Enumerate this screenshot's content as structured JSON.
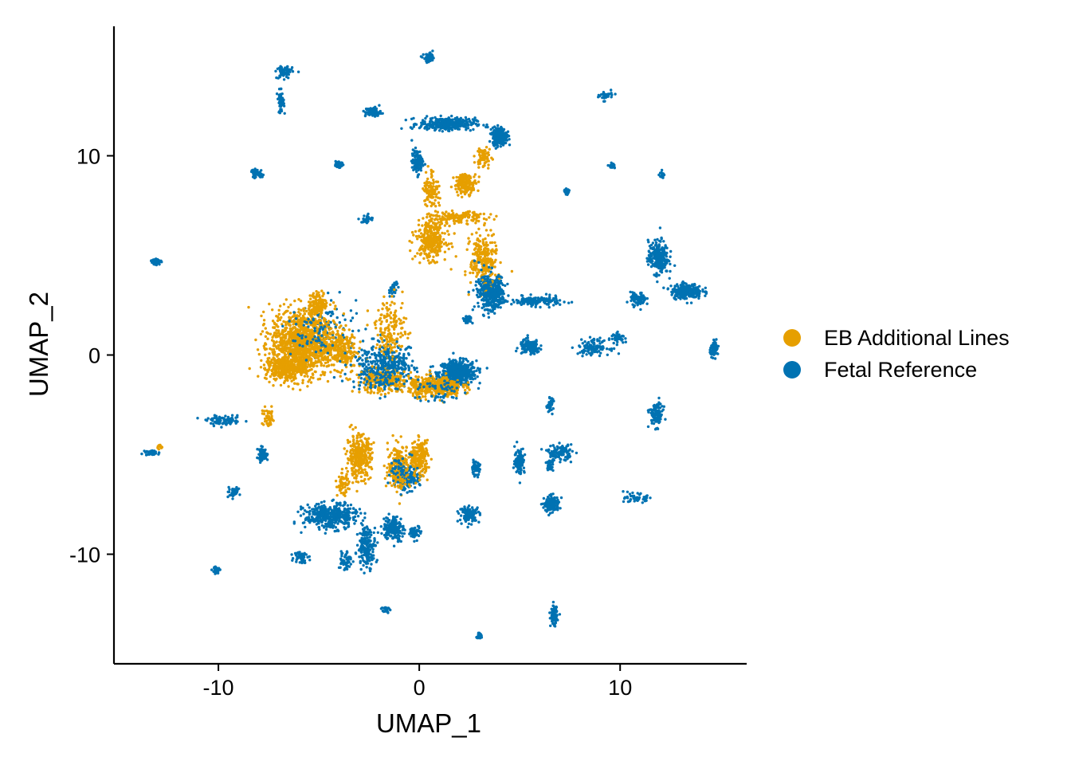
{
  "chart_data": {
    "type": "scatter",
    "title": "",
    "xlabel": "UMAP_1",
    "ylabel": "UMAP_2",
    "xlim": [
      -15.2,
      16.3
    ],
    "ylim": [
      -15.5,
      16.5
    ],
    "xticks": [
      -10,
      0,
      10
    ],
    "xtick_labels": [
      "-10",
      "0",
      "10"
    ],
    "yticks": [
      -10,
      0,
      10
    ],
    "ytick_labels": [
      "-10",
      "0",
      "10"
    ],
    "grid": false,
    "legend_position": "right",
    "series": [
      {
        "name": "EB Additional Lines",
        "color": "#E69F00",
        "clusters": [
          {
            "center": [
              -5.8,
              0.6
            ],
            "spread": [
              1.45,
              1.55
            ],
            "count": 1200
          },
          {
            "center": [
              -6.8,
              -0.7
            ],
            "spread": [
              0.8,
              0.5
            ],
            "count": 260
          },
          {
            "center": [
              -3.9,
              0.3
            ],
            "spread": [
              0.7,
              0.9
            ],
            "count": 220
          },
          {
            "center": [
              -5.0,
              2.6
            ],
            "spread": [
              0.4,
              0.5
            ],
            "count": 120
          },
          {
            "center": [
              0.8,
              -1.6
            ],
            "spread": [
              1.2,
              0.45
            ],
            "count": 420
          },
          {
            "center": [
              0.6,
              5.8
            ],
            "spread": [
              0.7,
              0.9
            ],
            "count": 320
          },
          {
            "center": [
              3.2,
              4.8
            ],
            "spread": [
              0.6,
              1.2
            ],
            "count": 240
          },
          {
            "center": [
              2.0,
              6.9
            ],
            "spread": [
              1.3,
              0.25
            ],
            "count": 130
          },
          {
            "center": [
              2.3,
              8.6
            ],
            "spread": [
              0.5,
              0.45
            ],
            "count": 160
          },
          {
            "center": [
              0.6,
              8.3
            ],
            "spread": [
              0.35,
              0.9
            ],
            "count": 110
          },
          {
            "center": [
              3.2,
              9.9
            ],
            "spread": [
              0.35,
              0.5
            ],
            "count": 60
          },
          {
            "center": [
              -3.0,
              -5.1
            ],
            "spread": [
              0.55,
              0.95
            ],
            "count": 320
          },
          {
            "center": [
              -1.0,
              -5.6
            ],
            "spread": [
              0.5,
              1.0
            ],
            "count": 220
          },
          {
            "center": [
              0.0,
              -5.2
            ],
            "spread": [
              0.4,
              0.8
            ],
            "count": 200
          },
          {
            "center": [
              -3.8,
              -6.5
            ],
            "spread": [
              0.25,
              0.5
            ],
            "count": 60
          },
          {
            "center": [
              -1.8,
              -1.3
            ],
            "spread": [
              1.3,
              0.55
            ],
            "count": 260
          },
          {
            "center": [
              -1.4,
              1.3
            ],
            "spread": [
              0.7,
              1.4
            ],
            "count": 160
          },
          {
            "center": [
              -7.5,
              -3.2
            ],
            "spread": [
              0.3,
              0.45
            ],
            "count": 50
          },
          {
            "center": [
              -12.9,
              -4.6
            ],
            "spread": [
              0.15,
              0.1
            ],
            "count": 15
          }
        ]
      },
      {
        "name": "Fetal Reference",
        "color": "#0072B2",
        "clusters": [
          {
            "center": [
              -1.5,
              -0.5
            ],
            "spread": [
              1.2,
              1.1
            ],
            "count": 180
          },
          {
            "center": [
              -4.5,
              1.5
            ],
            "spread": [
              1.2,
              1.3
            ],
            "count": 70
          },
          {
            "center": [
              1.9,
              -0.9
            ],
            "spread": [
              0.85,
              0.55
            ],
            "count": 520
          },
          {
            "center": [
              3.6,
              3.1
            ],
            "spread": [
              0.55,
              0.7
            ],
            "count": 400
          },
          {
            "center": [
              5.8,
              2.7
            ],
            "spread": [
              1.1,
              0.22
            ],
            "count": 160
          },
          {
            "center": [
              1.4,
              11.6
            ],
            "spread": [
              1.25,
              0.28
            ],
            "count": 340
          },
          {
            "center": [
              4.0,
              11.0
            ],
            "spread": [
              0.32,
              0.38
            ],
            "count": 320
          },
          {
            "center": [
              -2.3,
              12.2
            ],
            "spread": [
              0.35,
              0.22
            ],
            "count": 90
          },
          {
            "center": [
              -0.1,
              9.7
            ],
            "spread": [
              0.25,
              0.55
            ],
            "count": 100
          },
          {
            "center": [
              11.9,
              4.9
            ],
            "spread": [
              0.45,
              0.75
            ],
            "count": 260
          },
          {
            "center": [
              13.3,
              3.2
            ],
            "spread": [
              0.7,
              0.35
            ],
            "count": 230
          },
          {
            "center": [
              10.9,
              2.8
            ],
            "spread": [
              0.35,
              0.3
            ],
            "count": 90
          },
          {
            "center": [
              14.7,
              0.3
            ],
            "spread": [
              0.2,
              0.32
            ],
            "count": 70
          },
          {
            "center": [
              5.5,
              0.4
            ],
            "spread": [
              0.45,
              0.32
            ],
            "count": 160
          },
          {
            "center": [
              8.7,
              0.4
            ],
            "spread": [
              0.7,
              0.35
            ],
            "count": 120
          },
          {
            "center": [
              11.8,
              -3.0
            ],
            "spread": [
              0.3,
              0.55
            ],
            "count": 110
          },
          {
            "center": [
              -4.4,
              -8.1
            ],
            "spread": [
              1.2,
              0.55
            ],
            "count": 420
          },
          {
            "center": [
              -2.6,
              -9.6
            ],
            "spread": [
              0.4,
              0.9
            ],
            "count": 180
          },
          {
            "center": [
              -1.3,
              -8.7
            ],
            "spread": [
              0.45,
              0.55
            ],
            "count": 180
          },
          {
            "center": [
              -0.6,
              -6.2
            ],
            "spread": [
              0.55,
              0.5
            ],
            "count": 160
          },
          {
            "center": [
              2.8,
              -5.7
            ],
            "spread": [
              0.2,
              0.3
            ],
            "count": 60
          },
          {
            "center": [
              2.5,
              -8.0
            ],
            "spread": [
              0.45,
              0.35
            ],
            "count": 110
          },
          {
            "center": [
              5.0,
              -5.3
            ],
            "spread": [
              0.22,
              0.6
            ],
            "count": 110
          },
          {
            "center": [
              6.6,
              -7.5
            ],
            "spread": [
              0.35,
              0.35
            ],
            "count": 150
          },
          {
            "center": [
              7.0,
              -4.9
            ],
            "spread": [
              0.55,
              0.35
            ],
            "count": 110
          },
          {
            "center": [
              6.7,
              -13.1
            ],
            "spread": [
              0.15,
              0.45
            ],
            "count": 90
          },
          {
            "center": [
              0.5,
              14.9
            ],
            "spread": [
              0.25,
              0.2
            ],
            "count": 60
          },
          {
            "center": [
              -6.7,
              14.2
            ],
            "spread": [
              0.35,
              0.3
            ],
            "count": 70
          },
          {
            "center": [
              -6.9,
              12.7
            ],
            "spread": [
              0.15,
              0.5
            ],
            "count": 50
          },
          {
            "center": [
              -8.1,
              9.1
            ],
            "spread": [
              0.28,
              0.2
            ],
            "count": 50
          },
          {
            "center": [
              -13.1,
              4.7
            ],
            "spread": [
              0.22,
              0.15
            ],
            "count": 35
          },
          {
            "center": [
              -2.6,
              6.8
            ],
            "spread": [
              0.25,
              0.2
            ],
            "count": 35
          },
          {
            "center": [
              -4.0,
              9.6
            ],
            "spread": [
              0.18,
              0.18
            ],
            "count": 35
          },
          {
            "center": [
              -9.7,
              -3.3
            ],
            "spread": [
              0.8,
              0.2
            ],
            "count": 90
          },
          {
            "center": [
              -7.8,
              -5.0
            ],
            "spread": [
              0.25,
              0.3
            ],
            "count": 60
          },
          {
            "center": [
              -13.3,
              -4.9
            ],
            "spread": [
              0.3,
              0.12
            ],
            "count": 45
          },
          {
            "center": [
              -9.3,
              -6.9
            ],
            "spread": [
              0.3,
              0.2
            ],
            "count": 40
          },
          {
            "center": [
              -10.1,
              -10.8
            ],
            "spread": [
              0.18,
              0.18
            ],
            "count": 30
          },
          {
            "center": [
              -5.9,
              -10.1
            ],
            "spread": [
              0.3,
              0.3
            ],
            "count": 50
          },
          {
            "center": [
              -3.7,
              -10.3
            ],
            "spread": [
              0.3,
              0.5
            ],
            "count": 60
          },
          {
            "center": [
              -1.7,
              -12.8
            ],
            "spread": [
              0.18,
              0.2
            ],
            "count": 30
          },
          {
            "center": [
              3.0,
              -14.1
            ],
            "spread": [
              0.15,
              0.12
            ],
            "count": 35
          },
          {
            "center": [
              -0.2,
              -8.9
            ],
            "spread": [
              0.25,
              0.3
            ],
            "count": 60
          },
          {
            "center": [
              10.8,
              -7.2
            ],
            "spread": [
              0.5,
              0.2
            ],
            "count": 55
          },
          {
            "center": [
              6.5,
              -2.5
            ],
            "spread": [
              0.15,
              0.3
            ],
            "count": 40
          },
          {
            "center": [
              6.5,
              -5.5
            ],
            "spread": [
              0.15,
              0.3
            ],
            "count": 30
          },
          {
            "center": [
              9.3,
              13.0
            ],
            "spread": [
              0.3,
              0.2
            ],
            "count": 40
          },
          {
            "center": [
              9.6,
              9.5
            ],
            "spread": [
              0.15,
              0.15
            ],
            "count": 25
          },
          {
            "center": [
              7.3,
              8.2
            ],
            "spread": [
              0.15,
              0.12
            ],
            "count": 25
          },
          {
            "center": [
              12.1,
              9.0
            ],
            "spread": [
              0.1,
              0.2
            ],
            "count": 20
          },
          {
            "center": [
              -1.3,
              3.3
            ],
            "spread": [
              0.2,
              0.4
            ],
            "count": 30
          },
          {
            "center": [
              2.4,
              1.8
            ],
            "spread": [
              0.25,
              0.2
            ],
            "count": 30
          },
          {
            "center": [
              9.9,
              0.9
            ],
            "spread": [
              0.3,
              0.2
            ],
            "count": 40
          }
        ]
      }
    ]
  },
  "legend": {
    "items": [
      {
        "label": "EB Additional Lines",
        "color": "#E69F00"
      },
      {
        "label": "Fetal Reference",
        "color": "#0072B2"
      }
    ]
  }
}
